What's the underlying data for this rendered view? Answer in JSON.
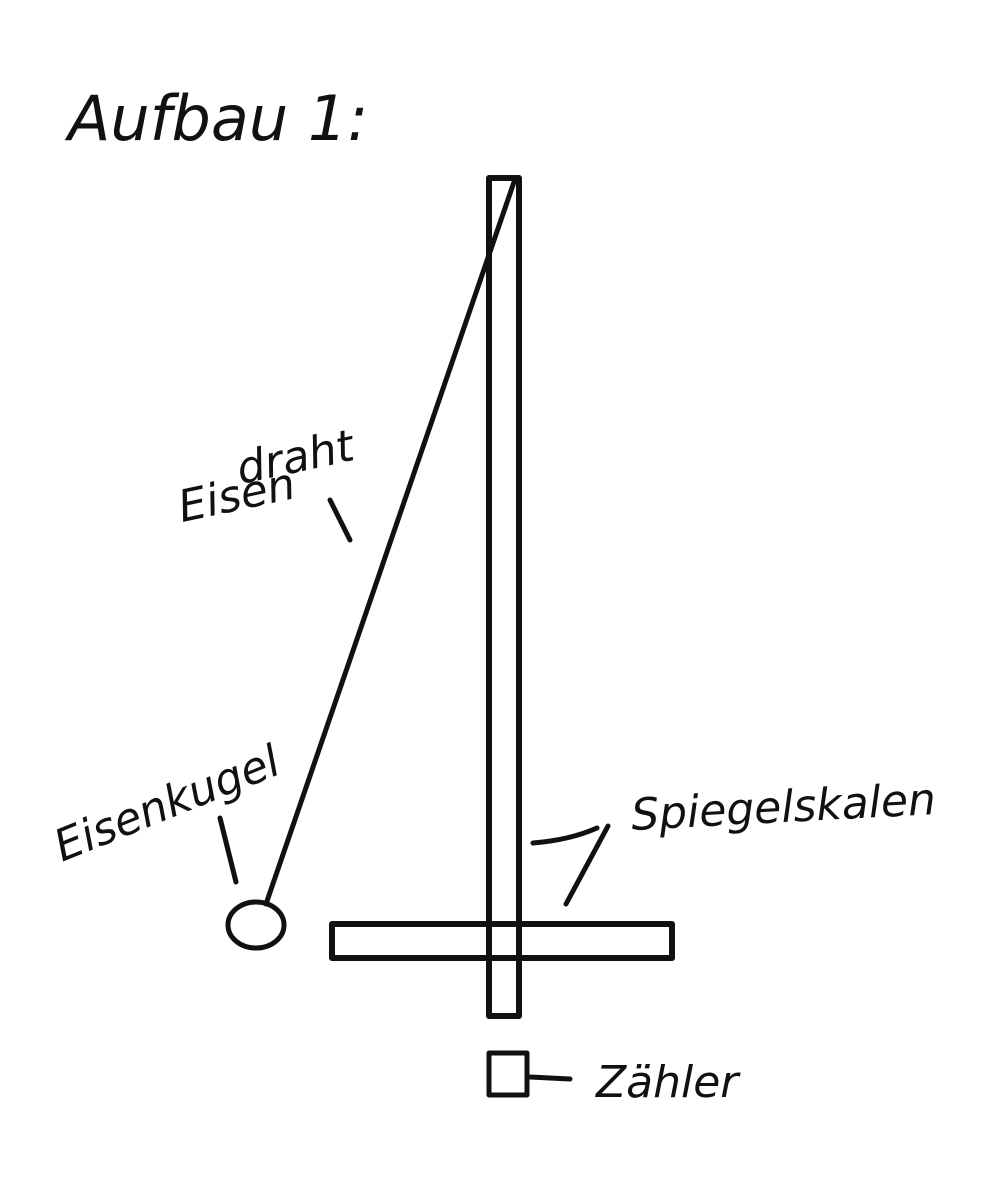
{
  "title": "Aufbau 1:",
  "labels": {
    "eisendraht_1": "Eisen",
    "eisendraht_2": "draht",
    "eisenkugel": "Eisenkugel",
    "spiegelskala": "Spiegelskalen",
    "zaehler": "Zähler"
  },
  "colors": {
    "ink": "#111111",
    "background": "#ffffff"
  }
}
